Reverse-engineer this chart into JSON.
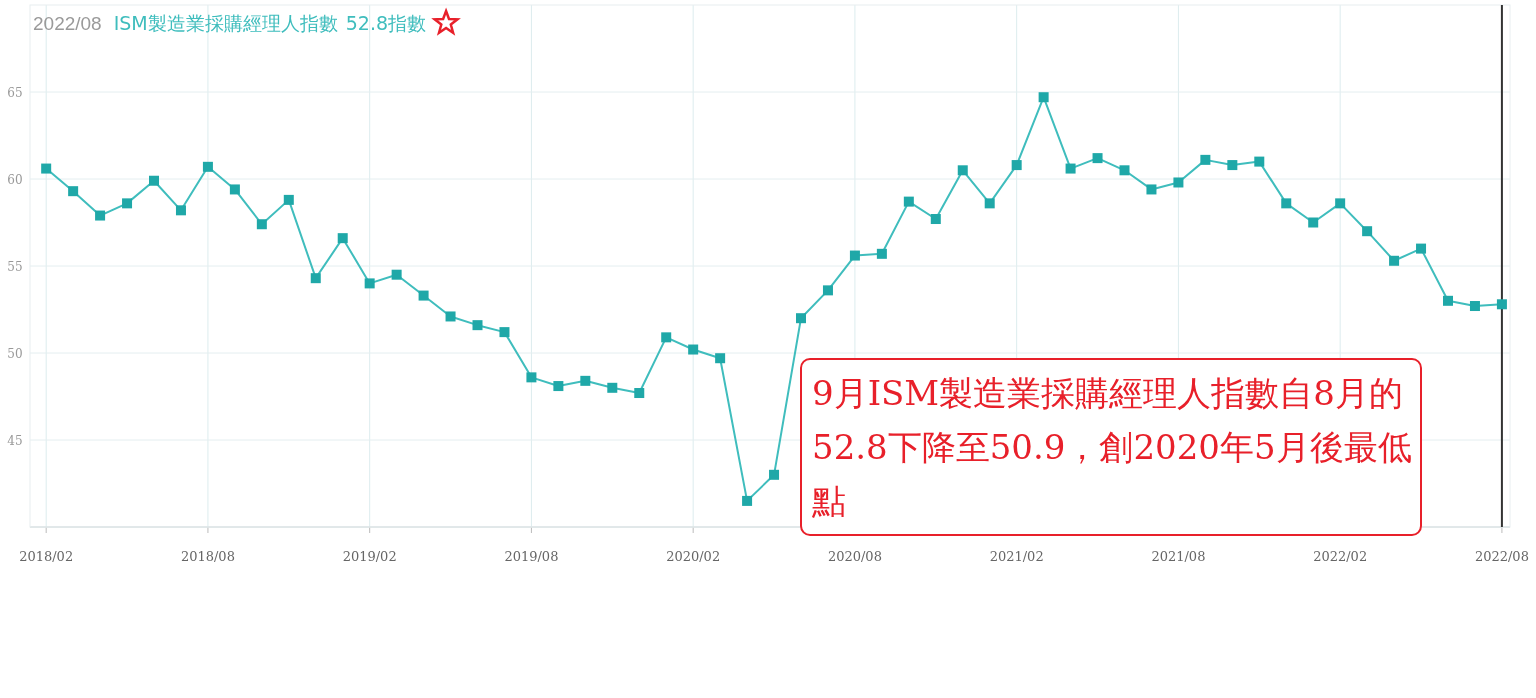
{
  "chart_data": {
    "type": "line",
    "x": [
      "2018-02",
      "2018-03",
      "2018-04",
      "2018-05",
      "2018-06",
      "2018-07",
      "2018-08",
      "2018-09",
      "2018-10",
      "2018-11",
      "2018-12",
      "2019-01",
      "2019-02",
      "2019-03",
      "2019-04",
      "2019-05",
      "2019-06",
      "2019-07",
      "2019-08",
      "2019-09",
      "2019-10",
      "2019-11",
      "2019-12",
      "2020-01",
      "2020-02",
      "2020-03",
      "2020-04",
      "2020-05",
      "2020-06",
      "2020-07",
      "2020-08",
      "2020-09",
      "2020-10",
      "2020-11",
      "2020-12",
      "2021-01",
      "2021-02",
      "2021-03",
      "2021-04",
      "2021-05",
      "2021-06",
      "2021-07",
      "2021-08",
      "2021-09",
      "2021-10",
      "2021-11",
      "2021-12",
      "2022-01",
      "2022-02",
      "2022-03",
      "2022-04",
      "2022-05",
      "2022-06",
      "2022-07",
      "2022-08"
    ],
    "series": [
      {
        "name": "ISM製造業採購經理人指數",
        "color": "#3fbdbd",
        "values": [
          60.6,
          59.3,
          57.9,
          58.6,
          59.9,
          58.2,
          60.7,
          59.4,
          57.4,
          58.8,
          54.3,
          56.6,
          54.0,
          54.5,
          53.3,
          52.1,
          51.6,
          51.2,
          48.6,
          48.1,
          48.4,
          48.0,
          47.7,
          50.9,
          50.2,
          49.7,
          41.5,
          43.0,
          52.0,
          53.6,
          55.6,
          55.7,
          58.7,
          57.7,
          60.5,
          58.6,
          60.8,
          64.7,
          60.6,
          61.2,
          60.5,
          59.4,
          59.8,
          61.1,
          60.8,
          61.0,
          58.6,
          57.5,
          58.6,
          57.0,
          55.3,
          56.0,
          53.0,
          52.7,
          52.8
        ]
      }
    ],
    "xlim": [
      "2018-01-13",
      "2022-08-10"
    ],
    "xticks": [
      {
        "value": "2018-02",
        "label": "2018/02"
      },
      {
        "value": "2018-08",
        "label": "2018/08"
      },
      {
        "value": "2019-02",
        "label": "2019/02"
      },
      {
        "value": "2019-08",
        "label": "2019/08"
      },
      {
        "value": "2020-02",
        "label": "2020/02"
      },
      {
        "value": "2020-08",
        "label": "2020/08"
      },
      {
        "value": "2021-02",
        "label": "2021/02"
      },
      {
        "value": "2021-08",
        "label": "2021/08"
      },
      {
        "value": "2022-02",
        "label": "2022/02"
      },
      {
        "value": "2022-08",
        "label": "2022/08"
      }
    ],
    "ylim": [
      40,
      70
    ],
    "yticks": [
      45,
      50,
      55,
      60,
      65
    ],
    "grid": true,
    "marker": "square",
    "legend": "top left",
    "ref_lines": [
      {
        "axis": "x",
        "value": "2022-08",
        "color": "#333333"
      }
    ],
    "annotations": [
      "2022/08",
      "52.8指數",
      "9月ISM製造業採購經理人指數自8月的52.8下降至50.9，創2020年5月後最低點"
    ]
  }
}
